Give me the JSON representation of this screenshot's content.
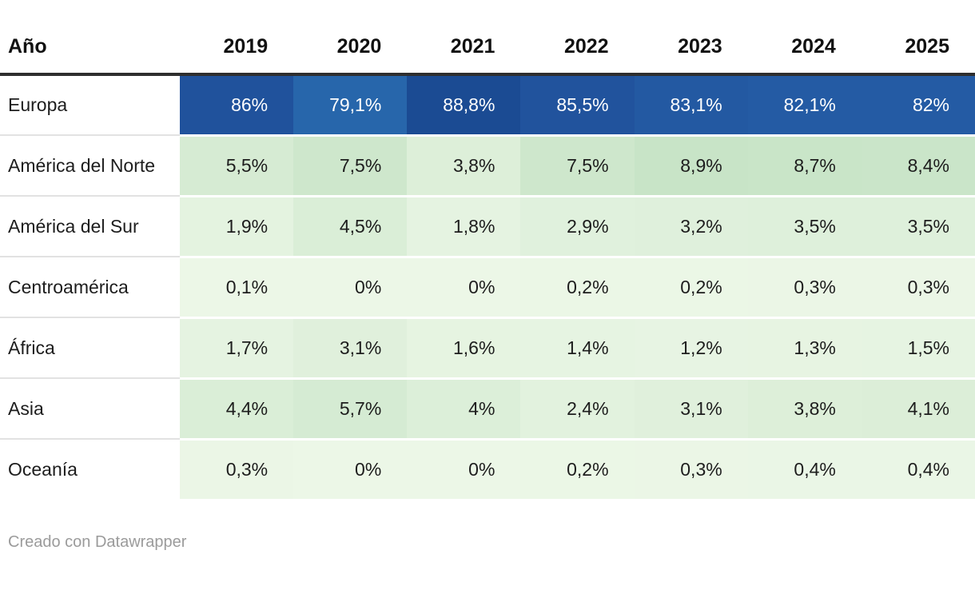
{
  "header": {
    "label_column": "Año",
    "years": [
      "2019",
      "2020",
      "2021",
      "2022",
      "2023",
      "2024",
      "2025"
    ]
  },
  "chart_data": {
    "type": "heatmap",
    "title": "",
    "xlabel": "Año",
    "ylabel": "",
    "unit": "%",
    "decimal_separator": ",",
    "categories": [
      "2019",
      "2020",
      "2021",
      "2022",
      "2023",
      "2024",
      "2025"
    ],
    "series": [
      {
        "name": "Europa",
        "values": [
          86,
          79.1,
          88.8,
          85.5,
          83.1,
          82.1,
          82
        ],
        "display": [
          "86%",
          "79,1%",
          "88,8%",
          "85,5%",
          "83,1%",
          "82,1%",
          "82%"
        ]
      },
      {
        "name": "América del Norte",
        "values": [
          5.5,
          7.5,
          3.8,
          7.5,
          8.9,
          8.7,
          8.4
        ],
        "display": [
          "5,5%",
          "7,5%",
          "3,8%",
          "7,5%",
          "8,9%",
          "8,7%",
          "8,4%"
        ]
      },
      {
        "name": "América del Sur",
        "values": [
          1.9,
          4.5,
          1.8,
          2.9,
          3.2,
          3.5,
          3.5
        ],
        "display": [
          "1,9%",
          "4,5%",
          "1,8%",
          "2,9%",
          "3,2%",
          "3,5%",
          "3,5%"
        ]
      },
      {
        "name": "Centroamérica",
        "values": [
          0.1,
          0,
          0,
          0.2,
          0.2,
          0.3,
          0.3
        ],
        "display": [
          "0,1%",
          "0%",
          "0%",
          "0,2%",
          "0,2%",
          "0,3%",
          "0,3%"
        ]
      },
      {
        "name": "África",
        "values": [
          1.7,
          3.1,
          1.6,
          1.4,
          1.2,
          1.3,
          1.5
        ],
        "display": [
          "1,7%",
          "3,1%",
          "1,6%",
          "1,4%",
          "1,2%",
          "1,3%",
          "1,5%"
        ]
      },
      {
        "name": "Asia",
        "values": [
          4.4,
          5.7,
          4,
          2.4,
          3.1,
          3.8,
          4.1
        ],
        "display": [
          "4,4%",
          "5,7%",
          "4%",
          "2,4%",
          "3,1%",
          "3,8%",
          "4,1%"
        ]
      },
      {
        "name": "Oceanía",
        "values": [
          0.3,
          0,
          0,
          0.2,
          0.3,
          0.4,
          0.4
        ],
        "display": [
          "0,3%",
          "0%",
          "0%",
          "0,2%",
          "0,3%",
          "0,4%",
          "0,4%"
        ]
      }
    ],
    "color_scale": {
      "stops": [
        [
          0,
          "#ecf7e7"
        ],
        [
          9,
          "#c8e4c7"
        ],
        [
          79.1,
          "#2766ab"
        ],
        [
          82,
          "#245ba4"
        ],
        [
          83.1,
          "#2359a2"
        ],
        [
          86,
          "#20529c"
        ],
        [
          88.8,
          "#1b4b93"
        ]
      ],
      "light_text_threshold": 50,
      "light_text_color": "#ffffff",
      "dark_text_color": "#1d1d1d"
    },
    "legend": "none",
    "grid": "off"
  },
  "footer": {
    "attribution": "Creado con Datawrapper"
  }
}
